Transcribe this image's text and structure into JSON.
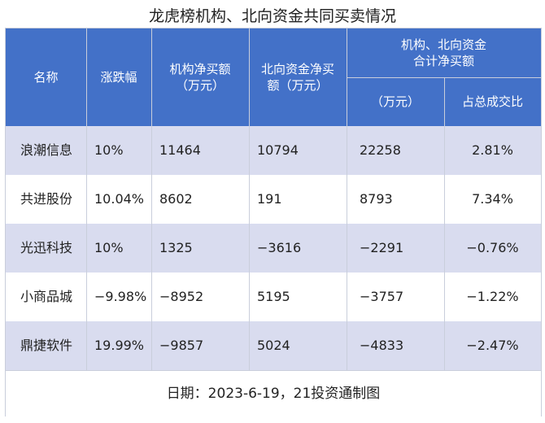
{
  "title": "龙虎榜机构、北向资金共同买卖情况",
  "header": {
    "name": "名称",
    "change": "涨跌幅",
    "inst_net": "机构净买额\n（万元）",
    "north_net": "北向资金净买\n额（万元）",
    "combined_group": "机构、北向资金\n合计净买额",
    "combined_unit": "（万元）",
    "ratio": "占总成交比"
  },
  "rows": [
    {
      "name": "浪潮信息",
      "change": "10%",
      "inst_net": "11464",
      "north_net": "10794",
      "combined": "22258",
      "ratio": "2.81%"
    },
    {
      "name": "共进股份",
      "change": "10.04%",
      "inst_net": "8602",
      "north_net": "191",
      "combined": "8793",
      "ratio": "7.34%"
    },
    {
      "name": "光迅科技",
      "change": "10%",
      "inst_net": "1325",
      "north_net": "−3616",
      "combined": "−2291",
      "ratio": "−0.76%"
    },
    {
      "name": "小商品城",
      "change": "−9.98%",
      "inst_net": "−8952",
      "north_net": "5195",
      "combined": "−3757",
      "ratio": "−1.22%"
    },
    {
      "name": "鼎捷软件",
      "change": "19.99%",
      "inst_net": "−9857",
      "north_net": "5024",
      "combined": "−4833",
      "ratio": "−2.47%"
    }
  ],
  "footer": "日期：2023-6-19，21投资通制图",
  "colors": {
    "header_bg": "#4371c8",
    "band": "#d9dcef",
    "grid": "#c9cedb"
  }
}
